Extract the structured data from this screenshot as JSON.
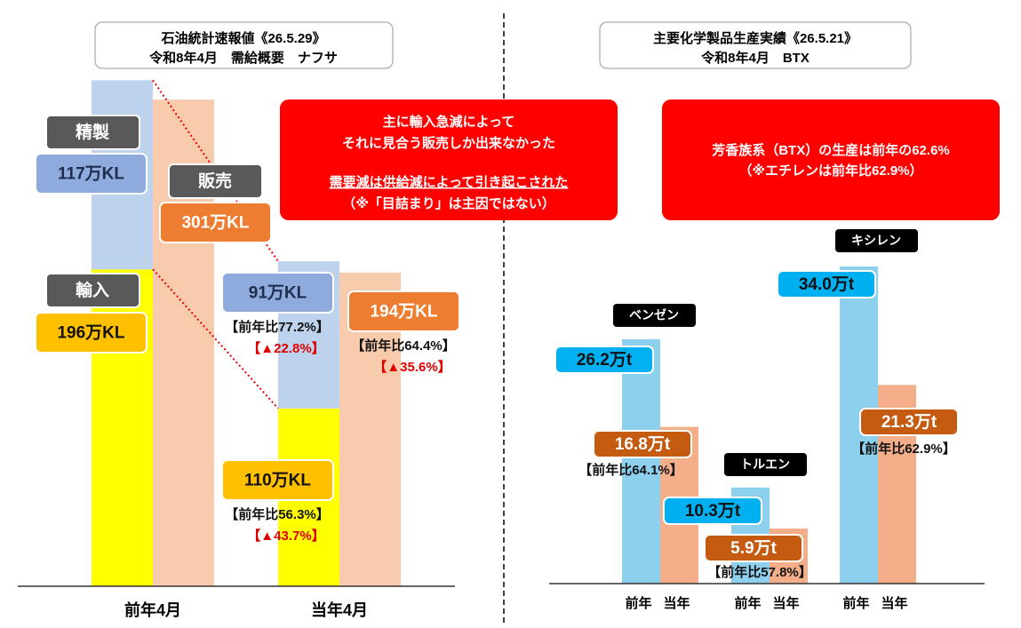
{
  "chart_data": [
    {
      "type": "bar",
      "title": "石油統計速報値《26.5.29》",
      "subtitle": "令和8年4月　需給概要　ナフサ",
      "callout": [
        "主に輸入急減によって",
        "それに見合う販売しか出来なかった",
        "需要減は供給減によって引き起こされた",
        "（※「目詰まり」は主因ではない）"
      ],
      "categories": [
        "前年4月",
        "当年4月"
      ],
      "series": [
        {
          "name": "輸入",
          "color": "#ffff00",
          "label_color": "#ffc000",
          "values": [
            196,
            110
          ],
          "value_labels": [
            "196万KL",
            "110万KL"
          ],
          "ratio_labels": [
            null,
            "【前年比56.3%】"
          ],
          "change_labels": [
            null,
            "【▲43.7%】"
          ]
        },
        {
          "name": "精製",
          "color": "#bdd2ec",
          "label_color": "#8faadc",
          "values": [
            117,
            91
          ],
          "value_labels": [
            "117万KL",
            "91万KL"
          ],
          "ratio_labels": [
            null,
            "【前年比77.2%】"
          ],
          "change_labels": [
            null,
            "【▲22.8%】"
          ]
        },
        {
          "name": "販売",
          "color": "#f8cbad",
          "label_color": "#ed7d31",
          "values": [
            301,
            194
          ],
          "value_labels": [
            "301万KL",
            "194万KL"
          ],
          "ratio_labels": [
            null,
            "【前年比64.4%】"
          ],
          "change_labels": [
            null,
            "【▲35.6%】"
          ]
        }
      ]
    },
    {
      "type": "grouped-bar",
      "title": "主要化学製品生産実績《26.5.21》",
      "subtitle": "令和8年4月　BTX",
      "callout": [
        "芳香族系（BTX）の生産は前年の62.6%",
        "（※エチレンは前年比62.9%）"
      ],
      "categories": [
        "ベンゼン",
        "トルエン",
        "キシレン"
      ],
      "series": [
        {
          "name": "前年",
          "color": "#8dd0ee",
          "label_color": "#00b0f0",
          "values": [
            26.2,
            10.3,
            34.0
          ],
          "value_labels": [
            "26.2万t",
            "10.3万t",
            "34.0万t"
          ]
        },
        {
          "name": "当年",
          "color": "#f4ae8a",
          "label_color": "#c55a11",
          "values": [
            16.8,
            5.9,
            21.3
          ],
          "value_labels": [
            "16.8万t",
            "5.9万t",
            "21.3万t"
          ],
          "ratio_labels": [
            "【前年比64.1%】",
            "【前年比57.8%】",
            "【前年比62.9%】"
          ]
        }
      ]
    }
  ]
}
